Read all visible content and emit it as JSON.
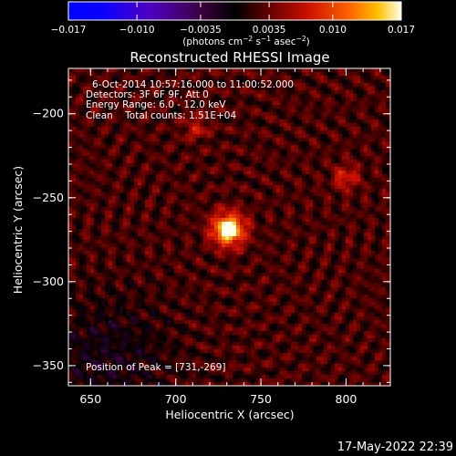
{
  "chart_data": {
    "type": "heatmap",
    "title": "Reconstructed RHESSI Image",
    "xlabel": "Heliocentric X (arcsec)",
    "ylabel": "Heliocentric Y (arcsec)",
    "xlim": [
      637,
      826
    ],
    "ylim": [
      -362,
      -173
    ],
    "xticks": [
      650,
      700,
      750,
      800
    ],
    "yticks": [
      -200,
      -250,
      -300,
      -350
    ],
    "x_tick_labels": [
      "650",
      "700",
      "750",
      "800"
    ],
    "y_tick_labels": [
      "−200",
      "−250",
      "−300",
      "−350"
    ],
    "colorbar": {
      "min": -0.017,
      "max": 0.017,
      "ticks": [
        -0.017,
        -0.01,
        -0.0035,
        0.0035,
        0.01,
        0.017
      ],
      "tick_labels": [
        "−0.017",
        "−0.010",
        "−0.0035",
        "0.0035",
        "0.010",
        "0.017"
      ],
      "units_prefix": "(photons cm",
      "units_sup1": "−2",
      "units_mid1": " s",
      "units_sup2": "−1",
      "units_mid2": " asec",
      "units_sup3": "−2",
      "units_suffix": ")"
    },
    "peak": {
      "x": 731,
      "y": -269,
      "value": 0.017
    },
    "secondary_sources": [
      {
        "x": 800,
        "y": -238,
        "value": 0.006
      },
      {
        "x": 712,
        "y": -208,
        "value": 0.0045
      }
    ],
    "grid": false
  },
  "annotations": {
    "time_range": "6-Oct-2014 10:57:16.000 to 11:00:52.000",
    "detectors": "Detectors: 3F 6F 9F, Att 0",
    "energy_range": "Energy Range: 6.0 - 12.0 keV",
    "method_counts": "Clean    Total counts: 1.51E+04",
    "peak_position": "Position of Peak = [731,-269]"
  },
  "footer": {
    "timestamp": "17-May-2022 22:39"
  },
  "colors": {
    "background": "#000000",
    "foreground": "#ffffff"
  }
}
